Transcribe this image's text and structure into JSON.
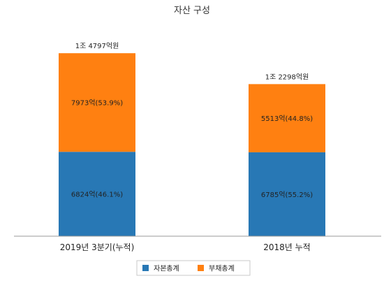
{
  "chart_data": {
    "type": "bar",
    "stacked": true,
    "title": "자산 구성",
    "categories": [
      "2019년 3분기(누적)",
      "2018년 누적"
    ],
    "totals": [
      14797,
      12298
    ],
    "total_labels": [
      "1조 4797억원",
      "1조 2298억원"
    ],
    "series": [
      {
        "name": "자본총계",
        "color": "#2878b5",
        "values": [
          6824,
          6785
        ],
        "labels": [
          "6824억(46.1%)",
          "6785억(55.2%)"
        ]
      },
      {
        "name": "부채총계",
        "color": "#ff8011",
        "values": [
          7973,
          5513
        ],
        "labels": [
          "7973억(53.9%)",
          "5513억(44.8%)"
        ]
      }
    ],
    "ylim": [
      0,
      16500
    ],
    "grid": false,
    "legend": "bottom",
    "axis_color": "#999999"
  }
}
